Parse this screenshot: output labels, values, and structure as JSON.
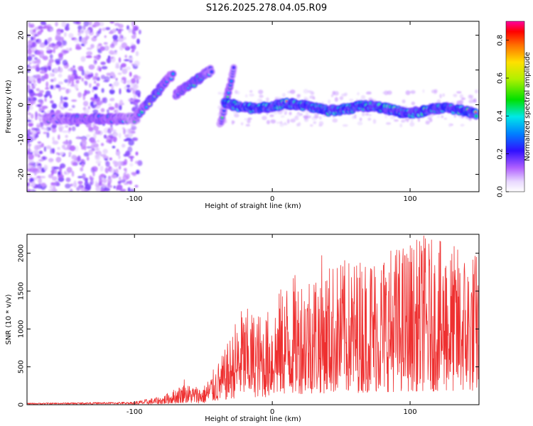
{
  "title": "S126.2025.278.04.05.R09",
  "chart_data": [
    {
      "type": "heatmap",
      "xlabel": "Height of straight line (km)",
      "ylabel": "Frequency (Hz)",
      "xlim": [
        -178,
        150
      ],
      "ylim": [
        -25,
        24
      ],
      "xticks": [
        -100,
        0,
        100
      ],
      "yticks": [
        -20,
        -10,
        0,
        10,
        20
      ],
      "colorbar": {
        "label": "Normalized spectral amplitude",
        "range": [
          0,
          0.9
        ],
        "ticks": [
          "0.0",
          "0.2",
          "0.4",
          "0.6",
          "0.8"
        ]
      },
      "ridges": [
        {
          "name": "low-altitude carrier",
          "x": [
            -165,
            -98
          ],
          "y": [
            -4,
            -4
          ]
        },
        {
          "name": "rising segment 1",
          "x": [
            -100,
            -72
          ],
          "y": [
            -4,
            9
          ]
        },
        {
          "name": "rising segment 2",
          "x": [
            -70,
            -44
          ],
          "y": [
            3,
            10
          ]
        },
        {
          "name": "rising segment 3",
          "x": [
            -38,
            -28
          ],
          "y": [
            -6,
            10
          ]
        },
        {
          "name": "main carrier",
          "x": [
            -35,
            148
          ],
          "y": [
            0,
            -2
          ]
        }
      ]
    },
    {
      "type": "line",
      "xlabel": "Height of straight line (km)",
      "ylabel": "SNR (10 * v/v)",
      "xlim": [
        -178,
        150
      ],
      "ylim": [
        0,
        2250
      ],
      "xticks": [
        -100,
        0,
        100
      ],
      "yticks": [
        0,
        500,
        1000,
        1500,
        2000
      ],
      "color": "#ee3030",
      "profile": [
        {
          "x": -178,
          "y": 15
        },
        {
          "x": -100,
          "y": 25
        },
        {
          "x": -80,
          "y": 60
        },
        {
          "x": -65,
          "y": 150
        },
        {
          "x": -50,
          "y": 130
        },
        {
          "x": -35,
          "y": 380
        },
        {
          "x": -22,
          "y": 700
        },
        {
          "x": -5,
          "y": 650
        },
        {
          "x": 10,
          "y": 900
        },
        {
          "x": 30,
          "y": 1000
        },
        {
          "x": 60,
          "y": 1050
        },
        {
          "x": 90,
          "y": 1150
        },
        {
          "x": 110,
          "y": 1200
        },
        {
          "x": 150,
          "y": 1100
        }
      ],
      "peaks": [
        {
          "x": -64,
          "y": 330
        },
        {
          "x": -27,
          "y": 1060
        },
        {
          "x": -22,
          "y": 1150
        },
        {
          "x": 36,
          "y": 1970
        },
        {
          "x": 52,
          "y": 1700
        },
        {
          "x": 72,
          "y": 1790
        },
        {
          "x": 90,
          "y": 1680
        },
        {
          "x": 100,
          "y": 2100
        },
        {
          "x": 110,
          "y": 2230
        },
        {
          "x": 126,
          "y": 1830
        },
        {
          "x": 146,
          "y": 1720
        }
      ]
    }
  ]
}
